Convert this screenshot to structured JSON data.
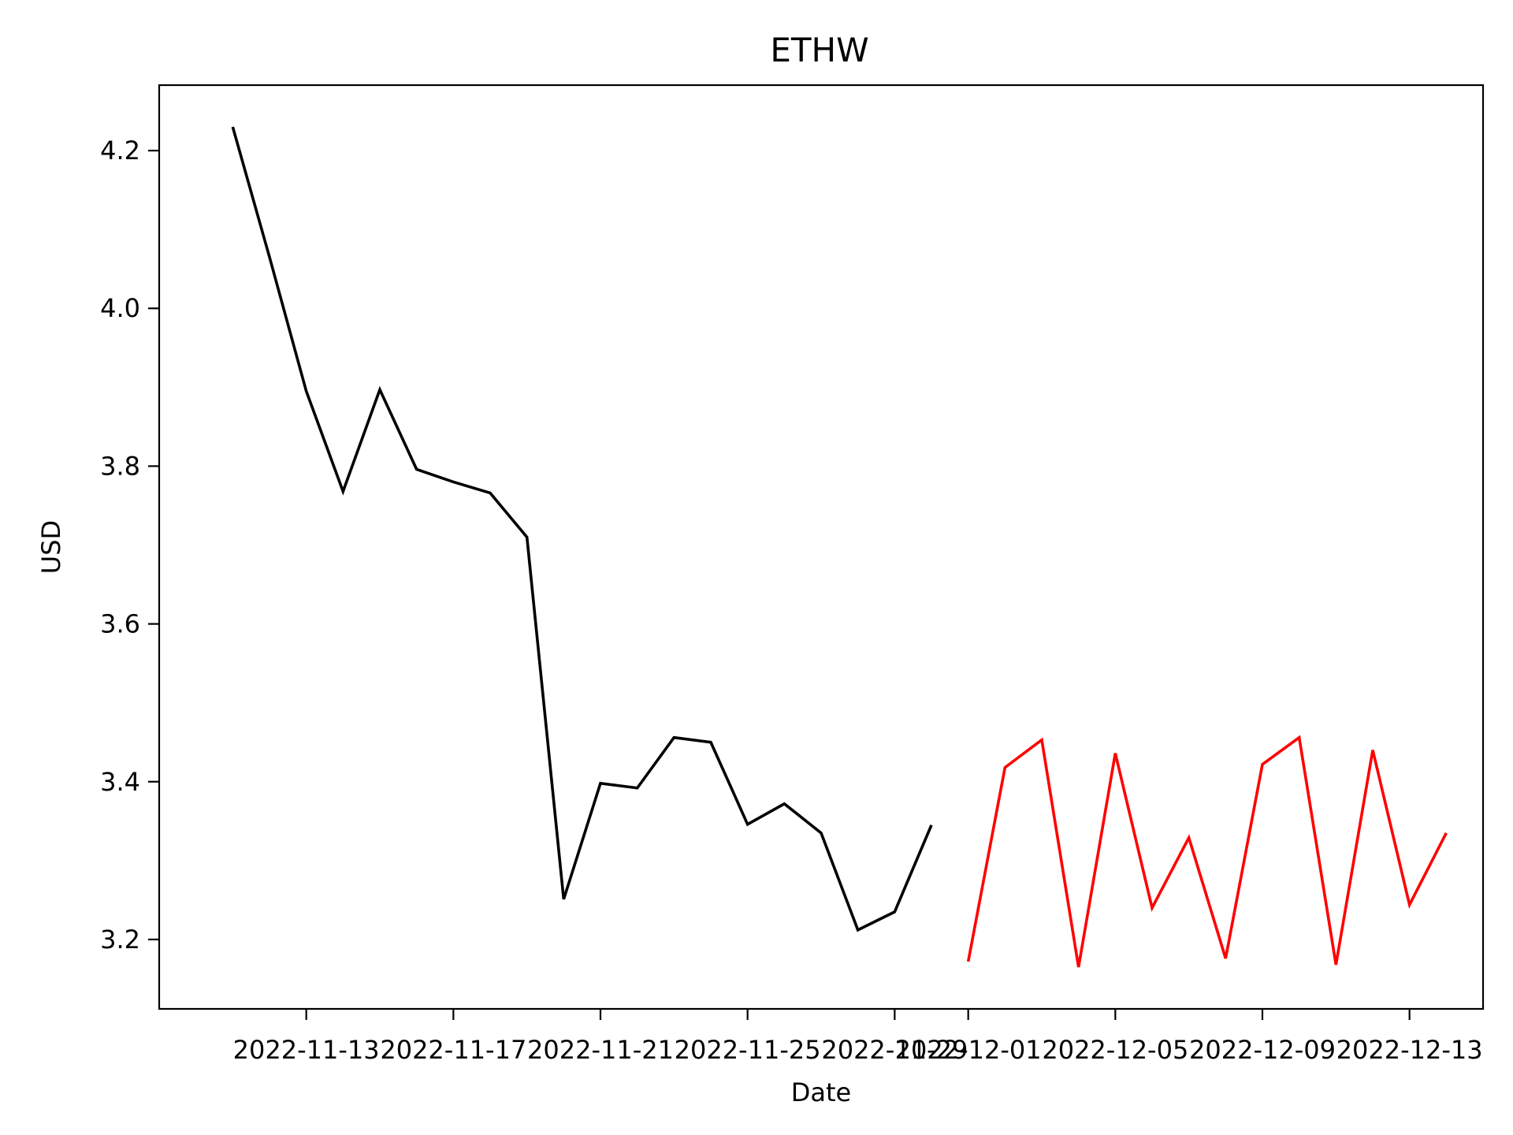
{
  "chart_data": {
    "type": "line",
    "title": "ETHW",
    "xlabel": "Date",
    "ylabel": "USD",
    "grid": false,
    "x_ticks": [
      "2022-11-13",
      "2022-11-17",
      "2022-11-21",
      "2022-11-25",
      "2022-11-29",
      "2022-12-01",
      "2022-12-05",
      "2022-12-09",
      "2022-12-13"
    ],
    "x_tick_dates": [
      "2022-11-13",
      "2022-11-17",
      "2022-11-21",
      "2022-11-25",
      "2022-11-29",
      "2022-12-01",
      "2022-12-05",
      "2022-12-09",
      "2022-12-13"
    ],
    "y_ticks": [
      "3.2",
      "3.4",
      "3.6",
      "3.8",
      "4.0",
      "4.2"
    ],
    "y_tick_values": [
      3.2,
      3.4,
      3.6,
      3.8,
      4.0,
      4.2
    ],
    "xlim": [
      "2022-11-09",
      "2022-12-15"
    ],
    "ylim": [
      3.112,
      4.283
    ],
    "series": [
      {
        "color": "#000000",
        "x": [
          "2022-11-11",
          "2022-11-12",
          "2022-11-13",
          "2022-11-14",
          "2022-11-15",
          "2022-11-16",
          "2022-11-17",
          "2022-11-18",
          "2022-11-19",
          "2022-11-20",
          "2022-11-21",
          "2022-11-22",
          "2022-11-23",
          "2022-11-24",
          "2022-11-25",
          "2022-11-26",
          "2022-11-27",
          "2022-11-28",
          "2022-11-29",
          "2022-11-30"
        ],
        "y": [
          4.23,
          4.065,
          3.895,
          3.768,
          3.897,
          3.796,
          3.78,
          3.766,
          3.71,
          3.251,
          3.398,
          3.392,
          3.456,
          3.45,
          3.346,
          3.372,
          3.335,
          3.212,
          3.235,
          3.345
        ]
      },
      {
        "color": "#ff0000",
        "x": [
          "2022-12-01",
          "2022-12-02",
          "2022-12-03",
          "2022-12-04",
          "2022-12-05",
          "2022-12-06",
          "2022-12-07",
          "2022-12-08",
          "2022-12-09",
          "2022-12-10",
          "2022-12-11",
          "2022-12-12",
          "2022-12-13",
          "2022-12-14"
        ],
        "y": [
          3.172,
          3.418,
          3.453,
          3.165,
          3.436,
          3.24,
          3.329,
          3.176,
          3.422,
          3.456,
          3.168,
          3.44,
          3.244,
          3.335
        ]
      }
    ]
  }
}
